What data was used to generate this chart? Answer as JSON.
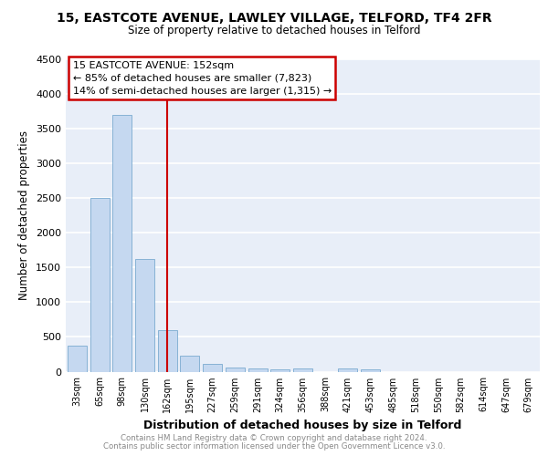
{
  "title": "15, EASTCOTE AVENUE, LAWLEY VILLAGE, TELFORD, TF4 2FR",
  "subtitle": "Size of property relative to detached houses in Telford",
  "xlabel": "Distribution of detached houses by size in Telford",
  "ylabel": "Number of detached properties",
  "categories": [
    "33sqm",
    "65sqm",
    "98sqm",
    "130sqm",
    "162sqm",
    "195sqm",
    "227sqm",
    "259sqm",
    "291sqm",
    "324sqm",
    "356sqm",
    "388sqm",
    "421sqm",
    "453sqm",
    "485sqm",
    "518sqm",
    "550sqm",
    "582sqm",
    "614sqm",
    "647sqm",
    "679sqm"
  ],
  "values": [
    375,
    2500,
    3700,
    1625,
    600,
    230,
    115,
    65,
    50,
    30,
    50,
    0,
    50,
    30,
    0,
    0,
    0,
    0,
    0,
    0,
    0
  ],
  "bar_color": "#c5d8f0",
  "bar_edge_color": "#7aaad0",
  "vline_color": "#cc0000",
  "vline_x": 4.0,
  "ylim": [
    0,
    4500
  ],
  "yticks": [
    0,
    500,
    1000,
    1500,
    2000,
    2500,
    3000,
    3500,
    4000,
    4500
  ],
  "annotation_title": "15 EASTCOTE AVENUE: 152sqm",
  "annotation_line1": "← 85% of detached houses are smaller (7,823)",
  "annotation_line2": "14% of semi-detached houses are larger (1,315) →",
  "annotation_box_color": "#cc0000",
  "footnote1": "Contains HM Land Registry data © Crown copyright and database right 2024.",
  "footnote2": "Contains public sector information licensed under the Open Government Licence v3.0.",
  "plot_bg_color": "#e8eef8",
  "grid_color": "#ffffff",
  "fig_bg_color": "#ffffff"
}
